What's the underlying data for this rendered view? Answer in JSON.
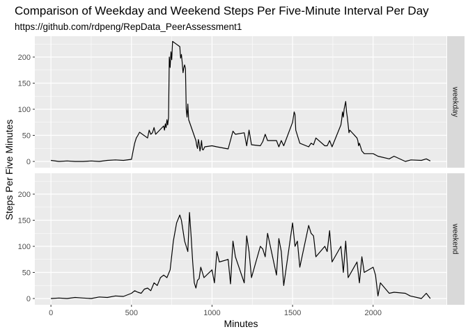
{
  "chart_data": {
    "type": "line",
    "title": "Comparison of Weekday and Weekend Steps Per Five-Minute Interval Per Day",
    "subtitle": "https://github.com/rdpeng/RepData_PeerAssessment1",
    "xlabel": "Minutes",
    "ylabel": "Steps Per Five Minutes",
    "xlim": [
      -100,
      2455
    ],
    "ylim": [
      -12,
      240
    ],
    "x_ticks": [
      0,
      500,
      1000,
      1500,
      2000
    ],
    "y_ticks": [
      0,
      50,
      100,
      150,
      200
    ],
    "grid": true,
    "facet_layout": "stacked-rows",
    "colors": {
      "panel_bg": "#EBEBEB",
      "strip_bg": "#D9D9D9",
      "grid_major": "#FFFFFF",
      "line": "#000000",
      "tick": "#333333"
    },
    "panels": [
      {
        "strip": "weekday",
        "series": [
          {
            "x": [
              0,
              50,
              100,
              150,
              200,
              250,
              300,
              350,
              400,
              450,
              500,
              510,
              520,
              530,
              540,
              550,
              600,
              610,
              620,
              630,
              640,
              650,
              700,
              705,
              710,
              715,
              720,
              725,
              730,
              735,
              740,
              745,
              750,
              755,
              800,
              805,
              810,
              815,
              820,
              825,
              830,
              835,
              840,
              845,
              850,
              855,
              900,
              905,
              910,
              915,
              920,
              925,
              930,
              935,
              940,
              945,
              950,
              955,
              1000,
              1030,
              1100,
              1130,
              1145,
              1200,
              1215,
              1230,
              1245,
              1300,
              1315,
              1330,
              1345,
              1400,
              1415,
              1430,
              1445,
              1500,
              1510,
              1515,
              1520,
              1530,
              1545,
              1600,
              1615,
              1630,
              1645,
              1700,
              1715,
              1730,
              1745,
              1800,
              1805,
              1810,
              1815,
              1820,
              1830,
              1835,
              1840,
              1845,
              1850,
              1855,
              1900,
              1905,
              1910,
              1915,
              1930,
              1945,
              2000,
              2030,
              2100,
              2130,
              2200,
              2235,
              2300,
              2330,
              2355
            ],
            "y": [
              2,
              0,
              1,
              0,
              0,
              1,
              0,
              2,
              3,
              2,
              4,
              20,
              35,
              45,
              50,
              56,
              45,
              60,
              52,
              55,
              65,
              52,
              68,
              60,
              72,
              65,
              80,
              70,
              84,
              200,
              180,
              210,
              195,
              230,
              220,
              198,
              205,
              190,
              170,
              180,
              185,
              178,
              100,
              85,
              110,
              80,
              40,
              30,
              25,
              42,
              35,
              20,
              28,
              40,
              23,
              22,
              25,
              28,
              30,
              28,
              24,
              58,
              52,
              55,
              30,
              60,
              32,
              30,
              38,
              52,
              40,
              40,
              28,
              40,
              30,
              75,
              95,
              90,
              60,
              50,
              35,
              28,
              35,
              32,
              45,
              30,
              30,
              40,
              28,
              70,
              80,
              95,
              85,
              100,
              115,
              95,
              85,
              70,
              55,
              60,
              45,
              40,
              30,
              35,
              20,
              15,
              15,
              10,
              5,
              10,
              0,
              3,
              2,
              5,
              1
            ]
          }
        ]
      },
      {
        "strip": "weekend",
        "series": [
          {
            "x": [
              0,
              50,
              100,
              150,
              200,
              250,
              300,
              350,
              400,
              450,
              500,
              520,
              540,
              560,
              580,
              600,
              620,
              640,
              660,
              680,
              700,
              720,
              740,
              760,
              780,
              800,
              810,
              820,
              830,
              840,
              850,
              860,
              870,
              880,
              890,
              900,
              910,
              920,
              930,
              940,
              950,
              1000,
              1015,
              1030,
              1045,
              1100,
              1115,
              1130,
              1145,
              1200,
              1215,
              1230,
              1245,
              1300,
              1315,
              1330,
              1345,
              1400,
              1415,
              1430,
              1445,
              1500,
              1515,
              1530,
              1545,
              1600,
              1615,
              1630,
              1645,
              1700,
              1715,
              1730,
              1745,
              1800,
              1815,
              1830,
              1845,
              1900,
              1915,
              1930,
              1945,
              2000,
              2015,
              2030,
              2045,
              2100,
              2130,
              2200,
              2230,
              2300,
              2330,
              2355
            ],
            "y": [
              0,
              1,
              0,
              2,
              1,
              0,
              3,
              2,
              5,
              4,
              10,
              15,
              12,
              10,
              18,
              20,
              15,
              30,
              25,
              40,
              45,
              40,
              55,
              110,
              145,
              160,
              150,
              130,
              110,
              100,
              90,
              165,
              120,
              70,
              30,
              20,
              35,
              38,
              60,
              50,
              40,
              55,
              30,
              90,
              70,
              75,
              28,
              110,
              80,
              30,
              120,
              90,
              40,
              100,
              95,
              80,
              125,
              45,
              115,
              90,
              25,
              145,
              100,
              110,
              60,
              140,
              125,
              120,
              80,
              100,
              90,
              130,
              70,
              100,
              50,
              110,
              40,
              70,
              30,
              80,
              50,
              60,
              45,
              5,
              30,
              10,
              12,
              10,
              5,
              0,
              10,
              0
            ]
          }
        ]
      }
    ]
  }
}
